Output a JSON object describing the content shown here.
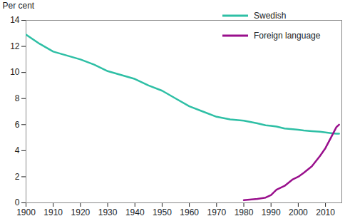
{
  "chart_data": {
    "type": "line",
    "y_label": "Per cent",
    "x": [
      1900,
      1905,
      1910,
      1915,
      1920,
      1925,
      1930,
      1935,
      1940,
      1945,
      1950,
      1955,
      1960,
      1965,
      1970,
      1975,
      1980,
      1985,
      1988,
      1990,
      1992,
      1995,
      1998,
      2000,
      2002,
      2005,
      2008,
      2010,
      2012,
      2014,
      2015
    ],
    "series": [
      {
        "name": "Swedish",
        "color": "#2ebfa5",
        "values": [
          12.9,
          12.2,
          11.6,
          11.3,
          11.0,
          10.6,
          10.1,
          9.8,
          9.5,
          9.0,
          8.6,
          8.0,
          7.4,
          7.0,
          6.6,
          6.4,
          6.3,
          6.1,
          5.95,
          5.9,
          5.85,
          5.7,
          5.65,
          5.6,
          5.55,
          5.5,
          5.45,
          5.4,
          5.35,
          5.3,
          5.3
        ]
      },
      {
        "name": "Foreign language",
        "color": "#990f8c",
        "values": [
          null,
          null,
          null,
          null,
          null,
          null,
          null,
          null,
          null,
          null,
          null,
          null,
          null,
          null,
          null,
          null,
          0.2,
          0.3,
          0.4,
          0.6,
          1.0,
          1.3,
          1.8,
          2.0,
          2.3,
          2.8,
          3.6,
          4.2,
          5.0,
          5.8,
          6.0
        ]
      }
    ],
    "xlim": [
      1900,
      2016
    ],
    "xticks": [
      1900,
      1910,
      1920,
      1930,
      1940,
      1950,
      1960,
      1970,
      1980,
      1990,
      2000,
      2010
    ],
    "ylim": [
      0,
      14
    ],
    "yticks": [
      0,
      2,
      4,
      6,
      8,
      10,
      12,
      14
    ],
    "grid": false,
    "legend": "top-right"
  }
}
